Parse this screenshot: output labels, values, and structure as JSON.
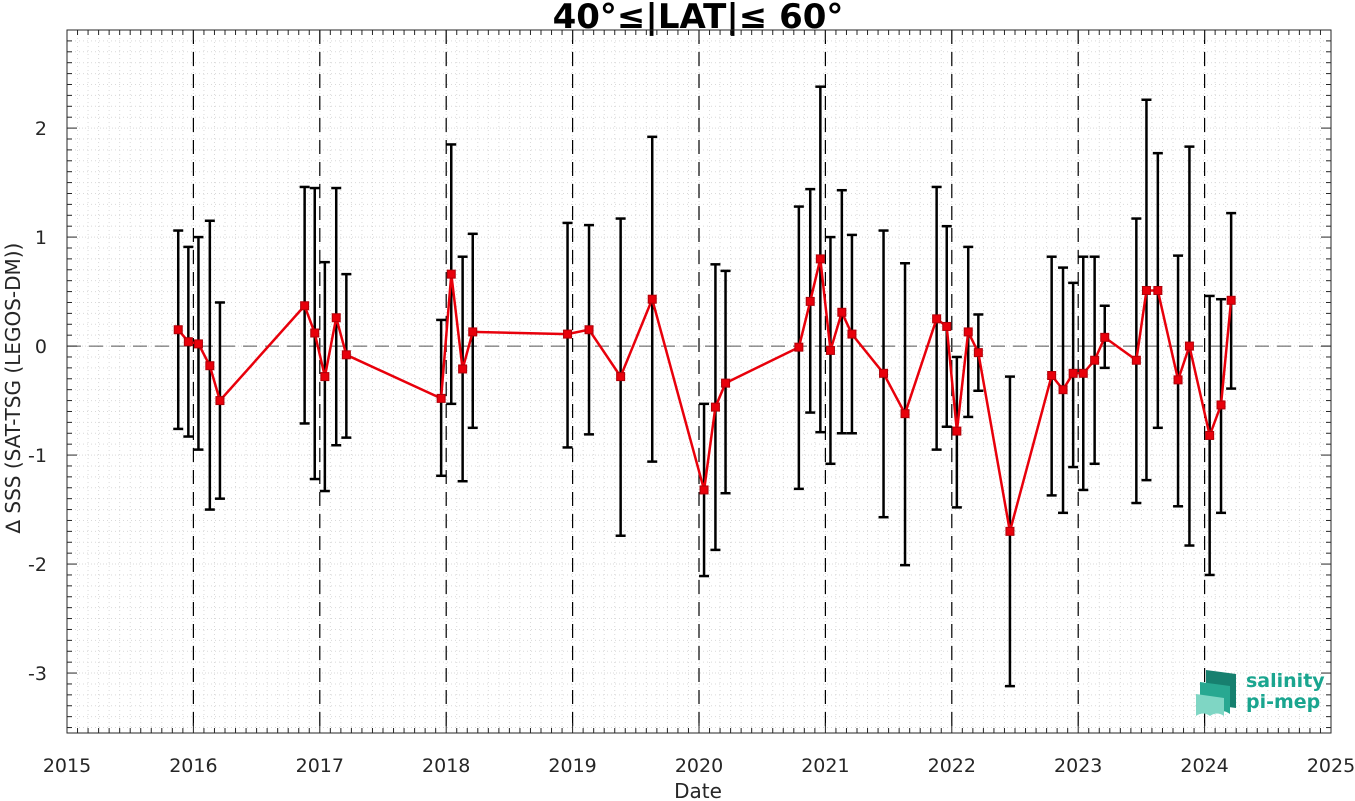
{
  "chart_data": {
    "type": "line",
    "title": "40°≤|LAT|≤ 60°",
    "xlabel": "Date",
    "ylabel": "∆ SSS (SAT-TSG (LEGOS-DM))",
    "xlim": [
      2015,
      2025
    ],
    "ylim": [
      -3.55,
      2.9
    ],
    "xticks": [
      2015,
      2016,
      2017,
      2018,
      2019,
      2020,
      2021,
      2022,
      2023,
      2024,
      2025
    ],
    "xtick_labels": [
      "2015",
      "2016",
      "2017",
      "2018",
      "2019",
      "2020",
      "2021",
      "2022",
      "2023",
      "2024",
      "2025"
    ],
    "yticks": [
      -3,
      -2,
      -1,
      0,
      1,
      2
    ],
    "ytick_labels": [
      "-3",
      "-2",
      "-1",
      "0",
      "1",
      "2"
    ],
    "grid": true,
    "year_boundary_lines": [
      2016,
      2017,
      2018,
      2019,
      2020,
      2021,
      2022,
      2023,
      2024
    ],
    "zero_line": 0,
    "colors": {
      "series": "#e8000b",
      "errorbar": "#000000",
      "grid": "#d9d9d9",
      "logo": "#1aa58f"
    },
    "series": [
      {
        "x": [
          2015.88,
          2015.96,
          2016.04,
          2016.13,
          2016.21,
          2016.88,
          2016.96,
          2017.04,
          2017.13,
          2017.21,
          2017.96,
          2018.04,
          2018.13,
          2018.21,
          2018.96,
          2019.13,
          2019.38,
          2019.63,
          2020.04,
          2020.13,
          2020.21,
          2020.79,
          2020.88,
          2020.96,
          2021.04,
          2021.13,
          2021.21,
          2021.46,
          2021.63,
          2021.88,
          2021.96,
          2022.04,
          2022.13,
          2022.21,
          2022.46,
          2022.79,
          2022.88,
          2022.96,
          2023.04,
          2023.13,
          2023.21,
          2023.46,
          2023.54,
          2023.63,
          2023.79,
          2023.88,
          2024.04,
          2024.13,
          2024.21
        ],
        "y": [
          0.15,
          0.04,
          0.02,
          -0.18,
          -0.5,
          0.37,
          0.12,
          -0.28,
          0.26,
          -0.08,
          -0.48,
          0.66,
          -0.21,
          0.13,
          0.11,
          0.15,
          -0.28,
          0.43,
          -1.32,
          -0.56,
          -0.34,
          -0.01,
          0.41,
          0.8,
          -0.04,
          0.31,
          0.11,
          -0.25,
          -0.62,
          0.25,
          0.18,
          -0.78,
          0.13,
          -0.06,
          -1.7,
          -0.27,
          -0.4,
          -0.25,
          -0.25,
          -0.13,
          0.08,
          -0.13,
          0.51,
          0.51,
          -0.31,
          0.0,
          -0.82,
          -0.54,
          0.42
        ],
        "y_low": [
          -0.76,
          -0.83,
          -0.95,
          -1.5,
          -1.4,
          -0.71,
          -1.22,
          -1.33,
          -0.91,
          -0.84,
          -1.19,
          -0.53,
          -1.24,
          -0.75,
          -0.93,
          -0.81,
          -1.74,
          -1.06,
          -2.11,
          -1.87,
          -1.35,
          -1.31,
          -0.61,
          -0.79,
          -1.08,
          -0.8,
          -0.8,
          -1.57,
          -2.01,
          -0.95,
          -0.74,
          -1.48,
          -0.65,
          -0.41,
          -3.12,
          -1.37,
          -1.53,
          -1.11,
          -1.32,
          -1.08,
          -0.2,
          -1.44,
          -1.23,
          -0.75,
          -1.47,
          -1.83,
          -2.1,
          -1.53,
          -0.39
        ],
        "y_high": [
          1.06,
          0.91,
          1.0,
          1.15,
          0.4,
          1.46,
          1.45,
          0.77,
          1.45,
          0.66,
          0.24,
          1.85,
          0.82,
          1.03,
          1.13,
          1.11,
          1.17,
          1.92,
          -0.53,
          0.75,
          0.69,
          1.28,
          1.44,
          2.38,
          1.0,
          1.43,
          1.02,
          1.06,
          0.76,
          1.46,
          1.1,
          -0.1,
          0.91,
          0.29,
          -0.28,
          0.82,
          0.72,
          0.58,
          0.82,
          0.82,
          0.37,
          1.17,
          2.26,
          1.77,
          0.83,
          1.83,
          0.46,
          0.43,
          1.22
        ]
      }
    ]
  },
  "logo": {
    "line1": "salinity",
    "line2": "pi-mep"
  }
}
